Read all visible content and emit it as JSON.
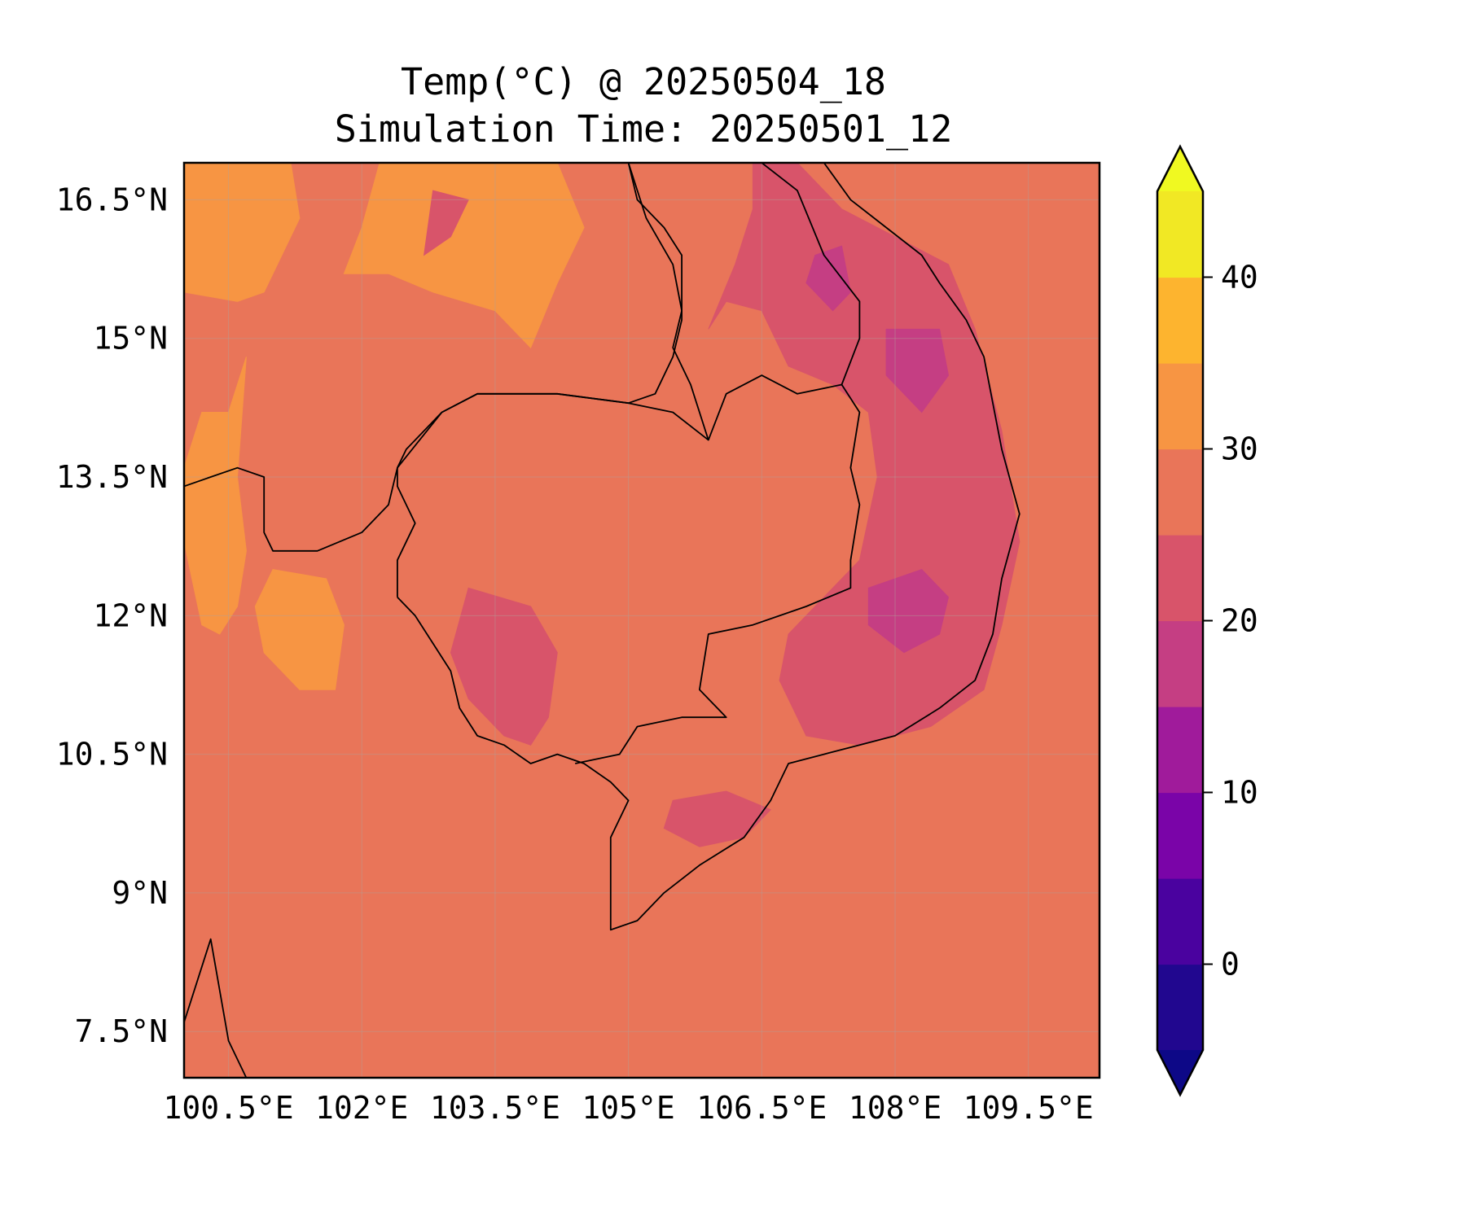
{
  "title": {
    "line1": "Temp(°C) @ 20250504_18",
    "line2": "Simulation Time: 20250501_12"
  },
  "map": {
    "projection": "PlateCarree",
    "lon_range": [
      100.0,
      110.3
    ],
    "lat_range": [
      7.0,
      16.9
    ],
    "gridlines": true,
    "background_color": "#e97559",
    "lon_ticks": [
      {
        "value": 100.5,
        "label": "100.5°E"
      },
      {
        "value": 102.0,
        "label": "102°E"
      },
      {
        "value": 103.5,
        "label": "103.5°E"
      },
      {
        "value": 105.0,
        "label": "105°E"
      },
      {
        "value": 106.5,
        "label": "106.5°E"
      },
      {
        "value": 108.0,
        "label": "108°E"
      },
      {
        "value": 109.5,
        "label": "109.5°E"
      }
    ],
    "lat_ticks": [
      {
        "value": 16.5,
        "label": "16.5°N"
      },
      {
        "value": 15.0,
        "label": "15°N"
      },
      {
        "value": 13.5,
        "label": "13.5°N"
      },
      {
        "value": 12.0,
        "label": "12°N"
      },
      {
        "value": 10.5,
        "label": "10.5°N"
      },
      {
        "value": 9.0,
        "label": "9°N"
      },
      {
        "value": 7.5,
        "label": "7.5°N"
      }
    ],
    "regions": [
      {
        "band": "30-35",
        "color": "#f79543",
        "points": [
          [
            100.0,
            16.9
          ],
          [
            101.2,
            16.9
          ],
          [
            101.3,
            16.3
          ],
          [
            101.1,
            15.9
          ],
          [
            100.9,
            15.5
          ],
          [
            100.6,
            15.4
          ],
          [
            100.0,
            15.5
          ]
        ]
      },
      {
        "band": "30-35",
        "color": "#f79543",
        "points": [
          [
            102.2,
            16.9
          ],
          [
            104.2,
            16.9
          ],
          [
            104.5,
            16.2
          ],
          [
            104.2,
            15.6
          ],
          [
            103.9,
            14.9
          ],
          [
            103.5,
            15.3
          ],
          [
            102.8,
            15.5
          ],
          [
            102.3,
            15.7
          ],
          [
            101.8,
            15.7
          ],
          [
            102.0,
            16.2
          ]
        ]
      },
      {
        "band": "30-35",
        "color": "#f79543",
        "points": [
          [
            100.2,
            14.2
          ],
          [
            100.5,
            14.2
          ],
          [
            100.7,
            14.8
          ],
          [
            100.6,
            13.5
          ],
          [
            100.7,
            12.7
          ],
          [
            100.6,
            12.1
          ],
          [
            100.4,
            11.8
          ],
          [
            100.2,
            11.9
          ],
          [
            100.0,
            12.8
          ],
          [
            100.0,
            13.6
          ]
        ]
      },
      {
        "band": "30-35",
        "color": "#f79543",
        "points": [
          [
            101.0,
            12.5
          ],
          [
            101.6,
            12.4
          ],
          [
            101.8,
            11.9
          ],
          [
            101.7,
            11.2
          ],
          [
            101.3,
            11.2
          ],
          [
            100.9,
            11.6
          ],
          [
            100.8,
            12.1
          ]
        ]
      },
      {
        "band": "20-25",
        "color": "#d8546a",
        "points": [
          [
            106.4,
            16.9
          ],
          [
            106.9,
            16.9
          ],
          [
            107.4,
            16.4
          ],
          [
            108.0,
            16.1
          ],
          [
            108.6,
            15.8
          ],
          [
            108.9,
            15.1
          ],
          [
            109.2,
            14.0
          ],
          [
            109.4,
            12.8
          ],
          [
            109.2,
            11.9
          ],
          [
            109.0,
            11.2
          ],
          [
            108.4,
            10.8
          ],
          [
            107.6,
            10.6
          ],
          [
            107.0,
            10.7
          ],
          [
            106.7,
            11.3
          ],
          [
            106.8,
            11.8
          ],
          [
            107.2,
            12.2
          ],
          [
            107.6,
            12.6
          ],
          [
            107.8,
            13.5
          ],
          [
            107.7,
            14.2
          ],
          [
            107.3,
            14.5
          ],
          [
            106.8,
            14.7
          ],
          [
            106.5,
            15.3
          ],
          [
            106.1,
            15.4
          ],
          [
            105.9,
            15.1
          ],
          [
            106.2,
            15.8
          ],
          [
            106.4,
            16.4
          ]
        ]
      },
      {
        "band": "20-25",
        "color": "#d8546a",
        "points": [
          [
            102.8,
            16.6
          ],
          [
            103.2,
            16.5
          ],
          [
            103.0,
            16.1
          ],
          [
            102.7,
            15.9
          ]
        ]
      },
      {
        "band": "20-25",
        "color": "#d8546a",
        "points": [
          [
            103.2,
            12.3
          ],
          [
            103.9,
            12.1
          ],
          [
            104.2,
            11.6
          ],
          [
            104.1,
            10.9
          ],
          [
            103.9,
            10.6
          ],
          [
            103.6,
            10.7
          ],
          [
            103.2,
            11.1
          ],
          [
            103.0,
            11.6
          ]
        ]
      },
      {
        "band": "20-25",
        "color": "#d8546a",
        "points": [
          [
            105.5,
            10.0
          ],
          [
            106.1,
            10.1
          ],
          [
            106.6,
            9.9
          ],
          [
            106.3,
            9.6
          ],
          [
            105.8,
            9.5
          ],
          [
            105.4,
            9.7
          ]
        ]
      },
      {
        "band": "15-20",
        "color": "#c53e83",
        "points": [
          [
            107.9,
            15.1
          ],
          [
            108.5,
            15.1
          ],
          [
            108.6,
            14.6
          ],
          [
            108.3,
            14.2
          ],
          [
            107.9,
            14.6
          ]
        ]
      },
      {
        "band": "15-20",
        "color": "#c53e83",
        "points": [
          [
            107.1,
            15.9
          ],
          [
            107.4,
            16.0
          ],
          [
            107.5,
            15.5
          ],
          [
            107.3,
            15.3
          ],
          [
            107.0,
            15.6
          ]
        ]
      },
      {
        "band": "15-20",
        "color": "#c53e83",
        "points": [
          [
            107.7,
            12.3
          ],
          [
            108.3,
            12.5
          ],
          [
            108.6,
            12.2
          ],
          [
            108.5,
            11.8
          ],
          [
            108.1,
            11.6
          ],
          [
            107.7,
            11.9
          ]
        ]
      }
    ],
    "coastlines": [
      [
        [
          105.0,
          16.9
        ],
        [
          105.1,
          16.5
        ],
        [
          105.4,
          16.2
        ],
        [
          105.6,
          15.9
        ],
        [
          105.6,
          15.6
        ],
        [
          105.6,
          15.2
        ],
        [
          105.5,
          14.8
        ],
        [
          105.3,
          14.4
        ],
        [
          105.0,
          14.3
        ],
        [
          104.2,
          14.4
        ],
        [
          103.3,
          14.4
        ],
        [
          102.9,
          14.2
        ],
        [
          102.5,
          13.8
        ],
        [
          102.4,
          13.6
        ],
        [
          102.3,
          13.2
        ],
        [
          102.0,
          12.9
        ],
        [
          101.5,
          12.7
        ],
        [
          101.0,
          12.7
        ],
        [
          100.9,
          12.9
        ],
        [
          100.9,
          13.5
        ],
        [
          100.6,
          13.6
        ],
        [
          100.3,
          13.5
        ],
        [
          100.0,
          13.4
        ]
      ],
      [
        [
          102.4,
          12.2
        ],
        [
          102.6,
          12.0
        ],
        [
          102.8,
          11.7
        ],
        [
          103.0,
          11.4
        ],
        [
          103.1,
          11.0
        ],
        [
          103.3,
          10.7
        ],
        [
          103.6,
          10.6
        ],
        [
          103.9,
          10.4
        ],
        [
          104.2,
          10.5
        ],
        [
          104.5,
          10.4
        ],
        [
          104.8,
          10.2
        ],
        [
          105.0,
          10.0
        ],
        [
          104.8,
          9.6
        ],
        [
          104.8,
          9.0
        ],
        [
          104.8,
          8.6
        ],
        [
          105.1,
          8.7
        ],
        [
          105.4,
          9.0
        ],
        [
          105.8,
          9.3
        ],
        [
          106.3,
          9.6
        ],
        [
          106.6,
          10.0
        ],
        [
          106.8,
          10.4
        ],
        [
          107.2,
          10.5
        ],
        [
          107.6,
          10.6
        ],
        [
          108.0,
          10.7
        ],
        [
          108.5,
          11.0
        ],
        [
          108.9,
          11.3
        ],
        [
          109.1,
          11.8
        ],
        [
          109.2,
          12.4
        ],
        [
          109.4,
          13.1
        ],
        [
          109.2,
          13.8
        ],
        [
          109.1,
          14.3
        ],
        [
          109.0,
          14.8
        ],
        [
          108.8,
          15.2
        ],
        [
          108.5,
          15.6
        ],
        [
          108.3,
          15.9
        ],
        [
          107.9,
          16.2
        ],
        [
          107.5,
          16.5
        ],
        [
          107.2,
          16.9
        ]
      ],
      [
        [
          100.0,
          7.6
        ],
        [
          100.1,
          7.9
        ],
        [
          100.3,
          8.5
        ],
        [
          100.5,
          7.4
        ],
        [
          100.7,
          7.0
        ]
      ]
    ],
    "borders": [
      [
        [
          102.4,
          12.2
        ],
        [
          102.4,
          12.6
        ],
        [
          102.6,
          13.0
        ],
        [
          102.4,
          13.4
        ],
        [
          102.4,
          13.6
        ],
        [
          102.9,
          14.2
        ],
        [
          103.3,
          14.4
        ],
        [
          104.2,
          14.4
        ],
        [
          105.0,
          14.3
        ],
        [
          105.5,
          14.2
        ],
        [
          105.9,
          13.9
        ],
        [
          106.1,
          14.4
        ],
        [
          106.5,
          14.6
        ],
        [
          106.9,
          14.4
        ],
        [
          107.4,
          14.5
        ],
        [
          107.6,
          14.2
        ],
        [
          107.5,
          13.6
        ],
        [
          107.6,
          13.2
        ],
        [
          107.5,
          12.6
        ],
        [
          107.5,
          12.3
        ],
        [
          107.0,
          12.1
        ],
        [
          106.4,
          11.9
        ],
        [
          105.9,
          11.8
        ],
        [
          105.8,
          11.2
        ],
        [
          106.1,
          10.9
        ],
        [
          105.6,
          10.9
        ],
        [
          105.1,
          10.8
        ],
        [
          104.9,
          10.5
        ],
        [
          104.4,
          10.4
        ]
      ],
      [
        [
          105.9,
          13.9
        ],
        [
          105.7,
          14.5
        ],
        [
          105.5,
          14.9
        ],
        [
          105.6,
          15.3
        ],
        [
          105.5,
          15.8
        ],
        [
          105.2,
          16.3
        ],
        [
          105.0,
          16.9
        ]
      ],
      [
        [
          107.4,
          14.5
        ],
        [
          107.6,
          15.0
        ],
        [
          107.6,
          15.4
        ],
        [
          107.2,
          15.9
        ],
        [
          106.9,
          16.6
        ],
        [
          106.5,
          16.9
        ]
      ]
    ]
  },
  "colorbar": {
    "min": -5,
    "max": 45,
    "extend": "both",
    "levels": [
      -5,
      0,
      5,
      10,
      15,
      20,
      25,
      30,
      35,
      40,
      45
    ],
    "colors": [
      "#21078f",
      "#4a029f",
      "#7a04a8",
      "#a01b9b",
      "#c53e83",
      "#d8546a",
      "#e97559",
      "#f79543",
      "#fdb42f",
      "#f1e824"
    ],
    "under_color": "#0d0887",
    "over_color": "#f0f921",
    "ticks": [
      {
        "value": 0,
        "label": "0"
      },
      {
        "value": 10,
        "label": "10"
      },
      {
        "value": 20,
        "label": "20"
      },
      {
        "value": 30,
        "label": "30"
      },
      {
        "value": 40,
        "label": "40"
      }
    ]
  }
}
